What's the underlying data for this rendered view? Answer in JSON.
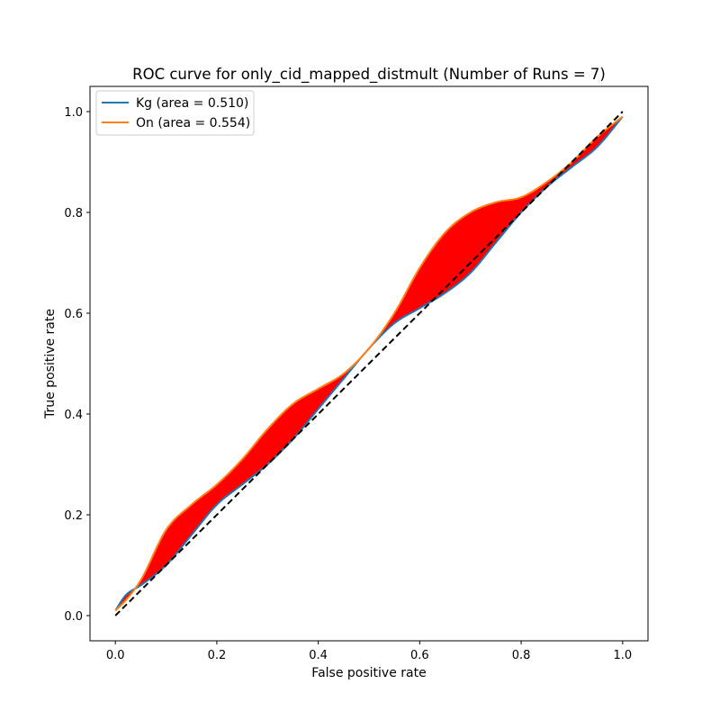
{
  "chart_data": {
    "type": "line",
    "title": "ROC curve for only_cid_mapped_distmult (Number of Runs = 7)",
    "xlabel": "False positive rate",
    "ylabel": "True positive rate",
    "xlim": [
      -0.05,
      1.05
    ],
    "ylim": [
      -0.05,
      1.05
    ],
    "xticks": [
      0.0,
      0.2,
      0.4,
      0.6,
      0.8,
      1.0
    ],
    "xtick_labels": [
      "0.0",
      "0.2",
      "0.4",
      "0.6",
      "0.8",
      "1.0"
    ],
    "yticks": [
      0.0,
      0.2,
      0.4,
      0.6,
      0.8,
      1.0
    ],
    "ytick_labels": [
      "0.0",
      "0.2",
      "0.4",
      "0.6",
      "0.8",
      "1.0"
    ],
    "grid": false,
    "legend_position": "upper-left",
    "fill_between_color": "#ff0000",
    "series": [
      {
        "name": "Kg (area = 0.510)",
        "color": "#1f77b4",
        "x": [
          0.0,
          0.02,
          0.05,
          0.1,
          0.15,
          0.2,
          0.25,
          0.3,
          0.35,
          0.4,
          0.45,
          0.5,
          0.55,
          0.6,
          0.65,
          0.7,
          0.75,
          0.8,
          0.85,
          0.9,
          0.95,
          1.0
        ],
        "y": [
          0.01,
          0.04,
          0.06,
          0.1,
          0.16,
          0.22,
          0.26,
          0.3,
          0.35,
          0.41,
          0.47,
          0.53,
          0.58,
          0.61,
          0.64,
          0.68,
          0.74,
          0.8,
          0.85,
          0.89,
          0.93,
          0.99
        ]
      },
      {
        "name": "On (area = 0.554)",
        "color": "#ff7f0e",
        "x": [
          0.0,
          0.02,
          0.05,
          0.1,
          0.15,
          0.2,
          0.25,
          0.3,
          0.35,
          0.4,
          0.45,
          0.5,
          0.55,
          0.6,
          0.65,
          0.7,
          0.75,
          0.8,
          0.85,
          0.9,
          0.95,
          1.0
        ],
        "y": [
          0.01,
          0.03,
          0.07,
          0.17,
          0.22,
          0.26,
          0.31,
          0.37,
          0.42,
          0.45,
          0.48,
          0.53,
          0.6,
          0.69,
          0.76,
          0.8,
          0.82,
          0.83,
          0.86,
          0.9,
          0.95,
          0.99
        ]
      },
      {
        "name": "",
        "color": "#000000",
        "dashed": true,
        "x": [
          0.0,
          1.0
        ],
        "y": [
          0.0,
          1.0
        ]
      }
    ]
  }
}
